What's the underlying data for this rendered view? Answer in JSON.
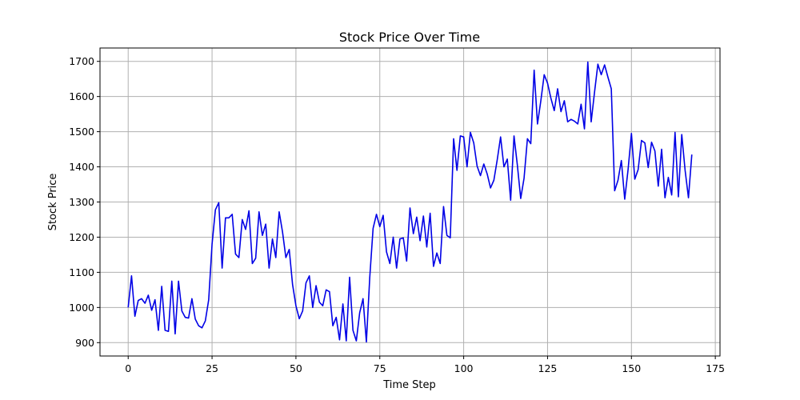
{
  "chart_data": {
    "type": "line",
    "title": "Stock Price Over Time",
    "xlabel": "Time Step",
    "ylabel": "Stock Price",
    "xlim": [
      -8.4,
      176.4
    ],
    "ylim": [
      862,
      1738
    ],
    "xticks": [
      0,
      25,
      50,
      75,
      100,
      125,
      150,
      175
    ],
    "yticks": [
      900,
      1000,
      1100,
      1200,
      1300,
      1400,
      1500,
      1600,
      1700
    ],
    "grid": true,
    "legend": "none",
    "colors": {
      "line": "#0000e6",
      "grid": "#b0b0b0"
    },
    "series": [
      {
        "x": [
          0,
          1,
          2,
          3,
          4,
          5,
          6,
          7,
          8,
          9,
          10,
          11,
          12,
          13,
          14,
          15,
          16,
          17,
          18,
          19,
          20,
          21,
          22,
          23,
          24,
          25,
          26,
          27,
          28,
          29,
          30,
          31,
          32,
          33,
          34,
          35,
          36,
          37,
          38,
          39,
          40,
          41,
          42,
          43,
          44,
          45,
          46,
          47,
          48,
          49,
          50,
          51,
          52,
          53,
          54,
          55,
          56,
          57,
          58,
          59,
          60,
          61,
          62,
          63,
          64,
          65,
          66,
          67,
          68,
          69,
          70,
          71,
          72,
          73,
          74,
          75,
          76,
          77,
          78,
          79,
          80,
          81,
          82,
          83,
          84,
          85,
          86,
          87,
          88,
          89,
          90,
          91,
          92,
          93,
          94,
          95,
          96,
          97,
          98,
          99,
          100,
          101,
          102,
          103,
          104,
          105,
          106,
          107,
          108,
          109,
          110,
          111,
          112,
          113,
          114,
          115,
          116,
          117,
          118,
          119,
          120,
          121,
          122,
          123,
          124,
          125,
          126,
          127,
          128,
          129,
          130,
          131,
          132,
          133,
          134,
          135,
          136,
          137,
          138,
          139,
          140,
          141,
          142,
          143,
          144,
          145,
          146,
          147,
          148,
          149,
          150,
          151,
          152,
          153,
          154,
          155,
          156,
          157,
          158,
          159,
          160,
          161,
          162,
          163,
          164,
          165,
          166,
          167,
          168
        ],
        "values": [
          1000,
          1090,
          975,
          1020,
          1025,
          1012,
          1035,
          992,
          1022,
          935,
          1060,
          935,
          932,
          1075,
          925,
          1075,
          990,
          972,
          970,
          1025,
          967,
          948,
          942,
          962,
          1022,
          1180,
          1278,
          1298,
          1112,
          1255,
          1255,
          1265,
          1152,
          1142,
          1250,
          1222,
          1275,
          1125,
          1140,
          1272,
          1205,
          1237,
          1112,
          1195,
          1142,
          1272,
          1215,
          1142,
          1165,
          1065,
          1005,
          968,
          990,
          1070,
          1090,
          1000,
          1062,
          1015,
          1005,
          1050,
          1045,
          948,
          972,
          908,
          1010,
          905,
          1086,
          935,
          905,
          985,
          1025,
          902,
          1085,
          1225,
          1265,
          1230,
          1262,
          1158,
          1125,
          1200,
          1112,
          1195,
          1198,
          1132,
          1283,
          1210,
          1257,
          1190,
          1260,
          1172,
          1268,
          1117,
          1155,
          1125,
          1287,
          1205,
          1198,
          1480,
          1390,
          1488,
          1485,
          1400,
          1498,
          1468,
          1402,
          1375,
          1408,
          1380,
          1340,
          1362,
          1420,
          1485,
          1400,
          1422,
          1305,
          1488,
          1405,
          1310,
          1368,
          1480,
          1466,
          1675,
          1522,
          1588,
          1662,
          1638,
          1595,
          1560,
          1622,
          1557,
          1588,
          1528,
          1535,
          1530,
          1522,
          1578,
          1508,
          1698,
          1528,
          1612,
          1692,
          1662,
          1690,
          1655,
          1622,
          1332,
          1362,
          1418,
          1308,
          1392,
          1495,
          1365,
          1392,
          1475,
          1468,
          1398,
          1470,
          1445,
          1345,
          1450,
          1312,
          1370,
          1320,
          1498,
          1315,
          1492,
          1390,
          1312,
          1435
        ]
      }
    ]
  }
}
